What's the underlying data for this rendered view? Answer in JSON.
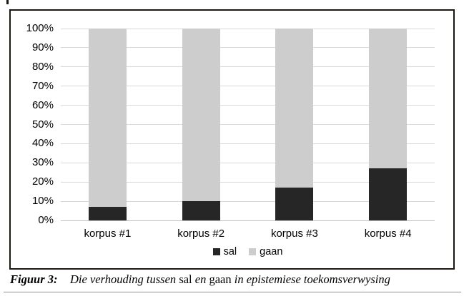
{
  "chart_data": {
    "type": "bar",
    "subtype": "stacked-100-percent",
    "title": "",
    "xlabel": "",
    "ylabel": "",
    "categories": [
      "korpus #1",
      "korpus #2",
      "korpus #3",
      "korpus #4"
    ],
    "series": [
      {
        "name": "sal",
        "color": "#262626",
        "values": [
          7,
          10,
          17,
          27
        ]
      },
      {
        "name": "gaan",
        "color": "#cdcdcd",
        "values": [
          93,
          90,
          83,
          73
        ]
      }
    ],
    "y_ticks": [
      "100%",
      "90%",
      "80%",
      "70%",
      "60%",
      "50%",
      "40%",
      "30%",
      "20%",
      "10%",
      "0%"
    ],
    "ylim": [
      0,
      100
    ],
    "grid": true,
    "gridline_color": "#d9d9d9",
    "axis_line_color": "#c2c2c2",
    "legend_position": "bottom",
    "legend": [
      "sal",
      "gaan"
    ]
  },
  "caption": {
    "label": "Figuur 3:",
    "segments": [
      {
        "text": "Die verhouding tussen ",
        "style": "italic"
      },
      {
        "text": "sal",
        "style": "roman"
      },
      {
        "text": " en ",
        "style": "italic"
      },
      {
        "text": "gaan",
        "style": "roman"
      },
      {
        "text": " in epistemiese toekomsverwysing",
        "style": "italic"
      }
    ]
  },
  "colors": {
    "frame_border": "#1b1712",
    "background": "#ffffff",
    "bottom_rule": "#8f8f8f",
    "text": "#000000"
  }
}
